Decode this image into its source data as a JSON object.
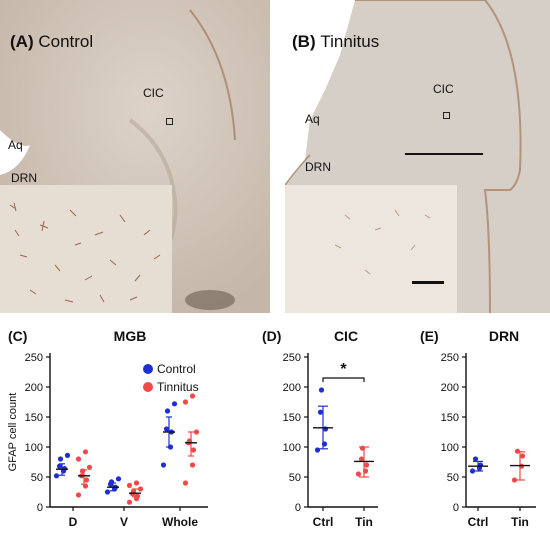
{
  "figure": {
    "panelA": {
      "tag": "(A)",
      "name": "Control",
      "labels": [
        "CIC",
        "Aq",
        "DRN"
      ]
    },
    "panelB": {
      "tag": "(B)",
      "name": "Tinnitus",
      "labels": [
        "CIC",
        "Aq",
        "DRN"
      ]
    }
  },
  "colors": {
    "control": "#1f2fd1",
    "tinnitus": "#ef4a4a"
  },
  "chart_data": [
    {
      "type": "scatter",
      "panel": "(C)",
      "title": "MGB",
      "ylabel": "GFAP cell count",
      "ylim": [
        0,
        250
      ],
      "yticks": [
        0,
        50,
        100,
        150,
        200,
        250
      ],
      "categories": [
        "D",
        "V",
        "Whole"
      ],
      "legend": [
        "Control",
        "Tinnitus"
      ],
      "legend_position": "top-right",
      "groups": [
        {
          "category": "D",
          "series": "Control",
          "mean": 63,
          "err": [
            53,
            72
          ],
          "points": [
            52,
            60,
            64,
            68,
            80,
            86
          ]
        },
        {
          "category": "D",
          "series": "Tinnitus",
          "mean": 52,
          "err": [
            38,
            62
          ],
          "points": [
            20,
            35,
            45,
            52,
            60,
            66,
            80,
            92
          ]
        },
        {
          "category": "V",
          "series": "Control",
          "mean": 33,
          "err": [
            27,
            40
          ],
          "points": [
            25,
            30,
            33,
            38,
            42,
            47
          ]
        },
        {
          "category": "V",
          "series": "Tinnitus",
          "mean": 23,
          "err": [
            17,
            30
          ],
          "points": [
            8,
            14,
            18,
            22,
            26,
            30,
            36,
            40
          ]
        },
        {
          "category": "Whole",
          "series": "Control",
          "mean": 125,
          "err": [
            100,
            150
          ],
          "points": [
            70,
            100,
            125,
            130,
            160,
            172
          ]
        },
        {
          "category": "Whole",
          "series": "Tinnitus",
          "mean": 107,
          "err": [
            85,
            125
          ],
          "points": [
            40,
            70,
            95,
            107,
            110,
            125,
            175,
            185
          ]
        }
      ]
    },
    {
      "type": "scatter",
      "panel": "(D)",
      "title": "CIC",
      "ylim": [
        0,
        250
      ],
      "yticks": [
        0,
        50,
        100,
        150,
        200,
        250
      ],
      "categories": [
        "Ctrl",
        "Tin"
      ],
      "significance": "*",
      "groups": [
        {
          "category": "Ctrl",
          "series": "Control",
          "mean": 132,
          "err": [
            97,
            168
          ],
          "points": [
            95,
            105,
            130,
            158,
            195
          ]
        },
        {
          "category": "Tin",
          "series": "Tinnitus",
          "mean": 76,
          "err": [
            50,
            100
          ],
          "points": [
            55,
            60,
            70,
            80,
            98
          ]
        }
      ]
    },
    {
      "type": "scatter",
      "panel": "(E)",
      "title": "DRN",
      "ylim": [
        0,
        250
      ],
      "yticks": [
        0,
        50,
        100,
        150,
        200,
        250
      ],
      "categories": [
        "Ctrl",
        "Tin"
      ],
      "groups": [
        {
          "category": "Ctrl",
          "series": "Control",
          "mean": 68,
          "err": [
            60,
            76
          ],
          "points": [
            60,
            65,
            70,
            80
          ]
        },
        {
          "category": "Tin",
          "series": "Tinnitus",
          "mean": 69,
          "err": [
            45,
            92
          ],
          "points": [
            45,
            68,
            85,
            93
          ]
        }
      ]
    }
  ]
}
